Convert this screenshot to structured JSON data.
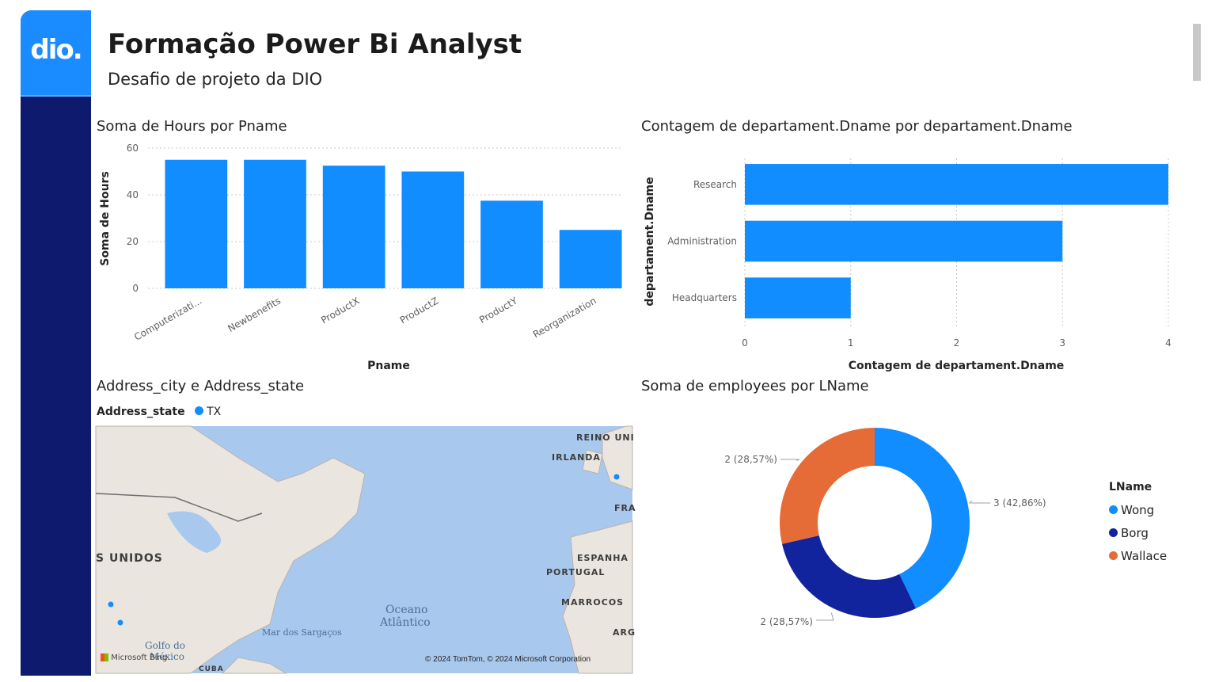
{
  "header": {
    "logo_text": "dio.",
    "title": "Formação Power Bi Analyst",
    "subtitle": "Desafio de projeto da DIO"
  },
  "colors": {
    "bar": "#118dff",
    "sidebar": "#0e1a6e",
    "logo_bg": "#1a8cff",
    "series": [
      "#118dff",
      "#12239e",
      "#e66c37"
    ]
  },
  "chart_data": [
    {
      "type": "bar",
      "title": "Soma de Hours por Pname",
      "xlabel": "Pname",
      "ylabel": "Soma de Hours",
      "categories": [
        "Computerizati...",
        "Newbenefits",
        "ProductX",
        "ProductZ",
        "ProductY",
        "Reorganization"
      ],
      "values": [
        55,
        55,
        52.5,
        50,
        37.5,
        25
      ],
      "ylim": [
        0,
        60
      ],
      "yticks": [
        "0",
        "20",
        "40",
        "60"
      ],
      "grid": true
    },
    {
      "type": "bar",
      "orientation": "horizontal",
      "title": "Contagem de departament.Dname por departament.Dname",
      "xlabel": "Contagem de departament.Dname",
      "ylabel": "departament.Dname",
      "categories": [
        "Research",
        "Administration",
        "Headquarters"
      ],
      "values": [
        4,
        3,
        1
      ],
      "xlim": [
        0,
        4
      ],
      "xticks": [
        "0",
        "1",
        "2",
        "3",
        "4"
      ],
      "grid": true
    },
    {
      "type": "pie",
      "donut": true,
      "title": "Soma de employees por LName",
      "legend_title": "LName",
      "legend_position": "right",
      "categories": [
        "Wong",
        "Borg",
        "Wallace"
      ],
      "values": [
        3,
        2,
        2
      ],
      "data_labels": [
        "3 (42,86%)",
        "2 (28,57%)",
        "2 (28,57%)"
      ]
    }
  ],
  "map": {
    "title": "Address_city e Address_state",
    "legend_label": "Address_state",
    "legend_item": "TX",
    "labels": {
      "reino": "REINO UNI",
      "irlanda": "IRLANDA",
      "fra": "FRA",
      "unidos": "S UNIDOS",
      "espanha": "ESPANHA",
      "portugal": "PORTUGAL",
      "marrocos": "MARROCOS",
      "arg": "ARG",
      "oceano": "Oceano",
      "atlantico": "Atlântico",
      "sargacos": "Mar dos Sargaços",
      "golfo": "Golfo do",
      "mexico": "México",
      "cuba": "CUBA",
      "bing": "Microsoft Bing",
      "copyright": "© 2024 TomTom, © 2024 Microsoft Corporation"
    }
  }
}
